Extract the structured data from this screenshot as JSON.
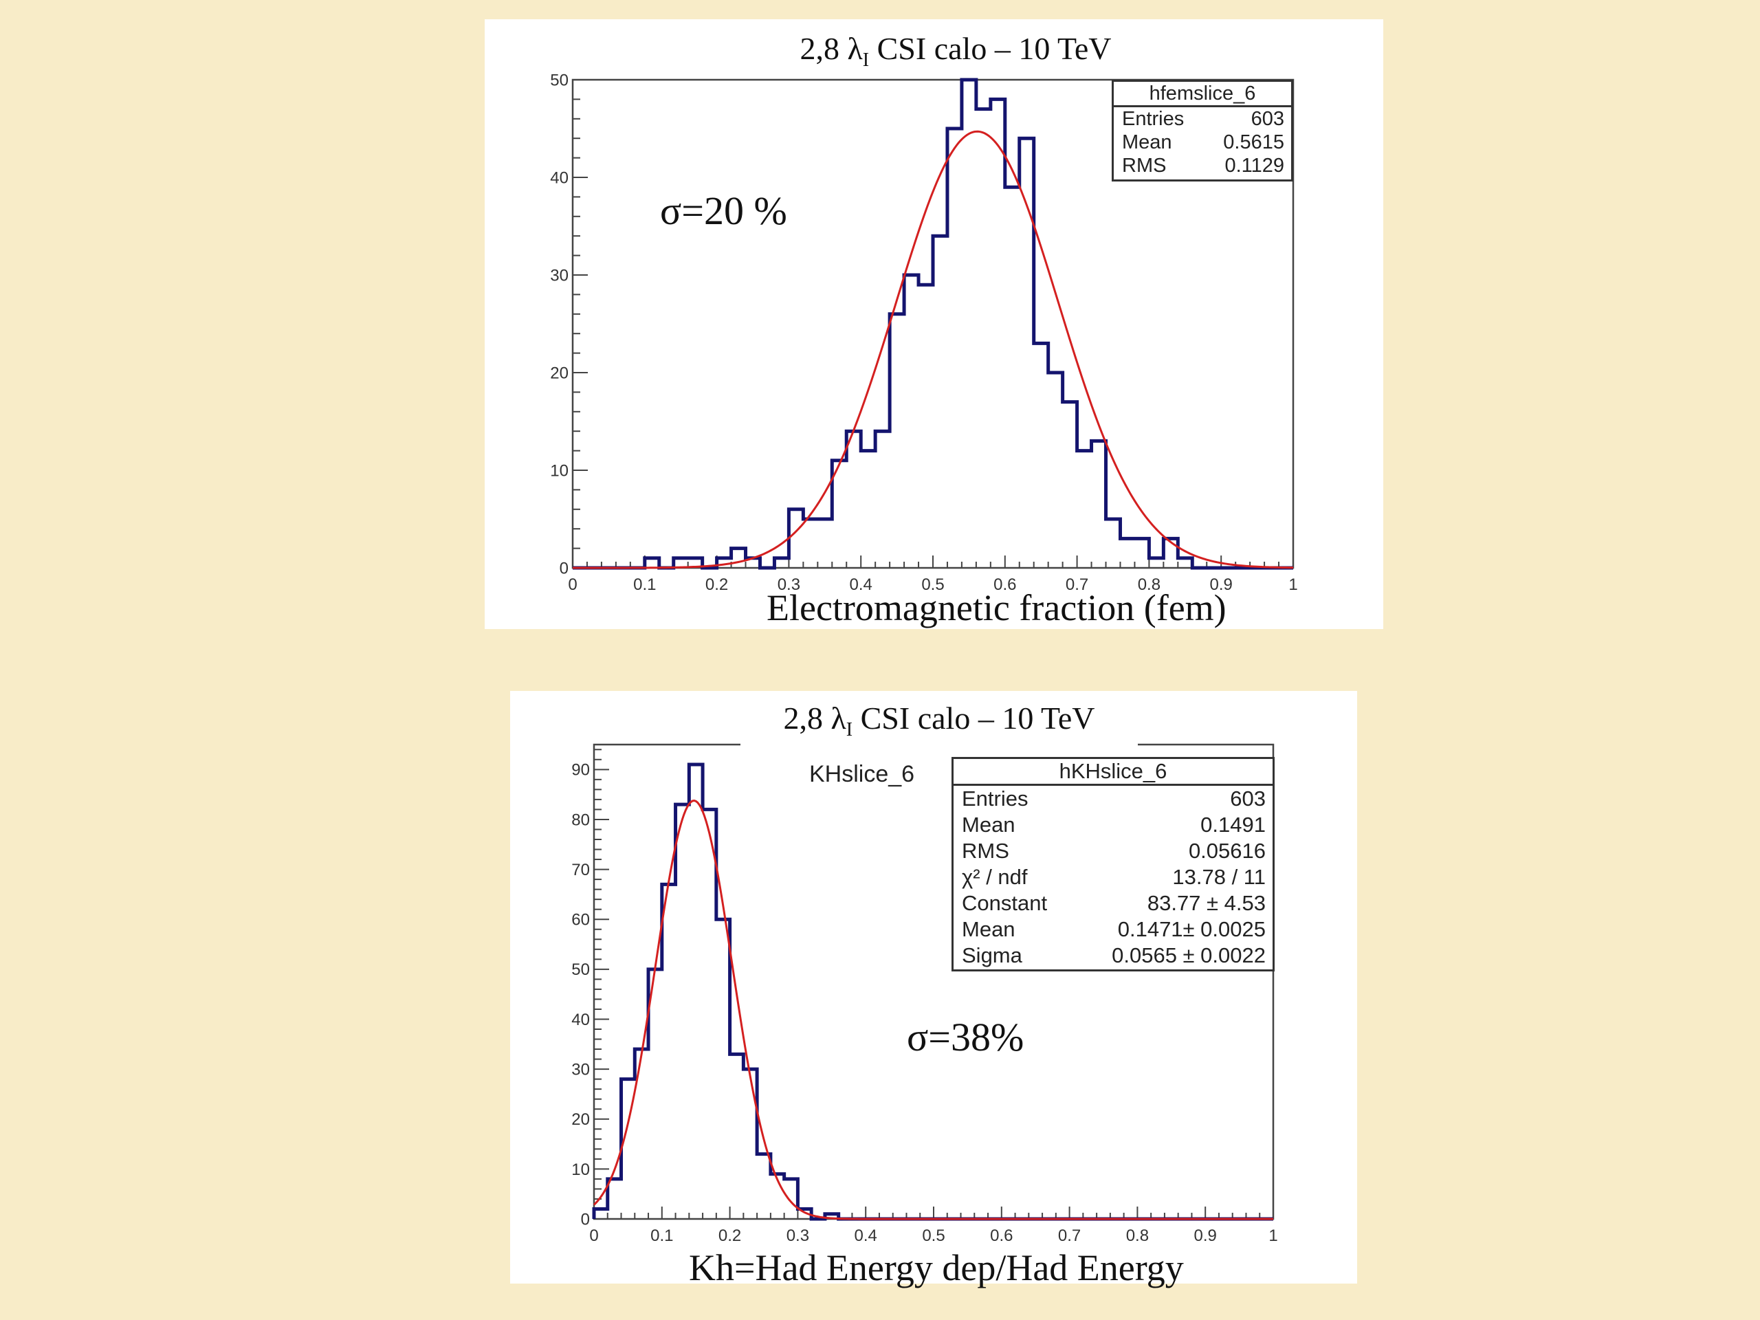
{
  "chart_data": [
    {
      "type": "histogram",
      "title": "2,8 λ I CSI  calo – 10 TeV",
      "title_main": "2,8 λ",
      "title_sub": "I",
      "title_rest": "CSI  calo – 10 TeV",
      "xlabel": "Electromagnetic fraction (fem)",
      "annotation": "σ=20 %",
      "xlim": [
        0,
        1
      ],
      "ylim": [
        0,
        50
      ],
      "xticks": [
        "0",
        "0.1",
        "0.2",
        "0.3",
        "0.4",
        "0.5",
        "0.6",
        "0.7",
        "0.8",
        "0.9",
        "1"
      ],
      "yticks": [
        "0",
        "10",
        "20",
        "30",
        "40",
        "50"
      ],
      "ytick_values": [
        0,
        10,
        20,
        30,
        40,
        50
      ],
      "bin_edges_start": 0.1,
      "bin_width": 0.02,
      "values": [
        1,
        0,
        1,
        1,
        0,
        1,
        2,
        1,
        0,
        1,
        6,
        5,
        5,
        11,
        14,
        12,
        14,
        26,
        30,
        29,
        34,
        45,
        50,
        47,
        48,
        39,
        44,
        23,
        20,
        17,
        12,
        13,
        5,
        3,
        3,
        1,
        3,
        1,
        0,
        0,
        0,
        0,
        0,
        0,
        0
      ],
      "fit": {
        "type": "gaussian",
        "constant": 44.7,
        "mean": 0.5615,
        "sigma": 0.1129,
        "color": "#d42020"
      },
      "histogram_color": "#14146e",
      "stats": {
        "name": "hfemslice_6",
        "rows": [
          {
            "label": "Entries",
            "value": "603"
          },
          {
            "label": "Mean",
            "value": "0.5615"
          },
          {
            "label": "RMS",
            "value": "0.1129"
          }
        ]
      }
    },
    {
      "type": "histogram",
      "title": "2,8 λ I CSI  calo – 10 TeV",
      "title_main": "2,8 λ",
      "title_sub": "I",
      "title_rest": "CSI  calo – 10 TeV",
      "xlabel": "Kh=Had Energy dep/Had Energy",
      "annotation": "σ=38%",
      "histogram_name": "KHslice_6",
      "xlim": [
        0,
        1
      ],
      "ylim": [
        0,
        95
      ],
      "xticks": [
        "0",
        "0.1",
        "0.2",
        "0.3",
        "0.4",
        "0.5",
        "0.6",
        "0.7",
        "0.8",
        "0.9",
        "1"
      ],
      "yticks": [
        "0",
        "10",
        "20",
        "30",
        "40",
        "50",
        "60",
        "70",
        "80",
        "90"
      ],
      "ytick_values": [
        0,
        10,
        20,
        30,
        40,
        50,
        60,
        70,
        80,
        90
      ],
      "bin_edges_start": 0.0,
      "bin_width": 0.02,
      "values": [
        2,
        8,
        28,
        34,
        50,
        67,
        83,
        91,
        82,
        60,
        33,
        30,
        13,
        9,
        8,
        2,
        0,
        1,
        0,
        0,
        0,
        0,
        0,
        0,
        0,
        0,
        0,
        0,
        0,
        0,
        0,
        0,
        0,
        0,
        0,
        0,
        0,
        0,
        0,
        0,
        0,
        0,
        0,
        0,
        0,
        0,
        0,
        0,
        0,
        0
      ],
      "fit": {
        "type": "gaussian",
        "constant": 83.77,
        "mean": 0.1471,
        "sigma": 0.0565,
        "color": "#d42020"
      },
      "histogram_color": "#14146e",
      "stats": {
        "name": "hKHslice_6",
        "rows": [
          {
            "label": "Entries",
            "value": "603"
          },
          {
            "label": "Mean",
            "value": "0.1491"
          },
          {
            "label": "RMS",
            "value": "0.05616"
          },
          {
            "label": "χ² / ndf",
            "value": "13.78 / 11"
          },
          {
            "label": "Constant",
            "value": "83.77 ± 4.53"
          },
          {
            "label": "Mean",
            "value": "0.1471± 0.0025"
          },
          {
            "label": "Sigma",
            "value": "0.0565 ± 0.0022"
          }
        ]
      }
    }
  ]
}
